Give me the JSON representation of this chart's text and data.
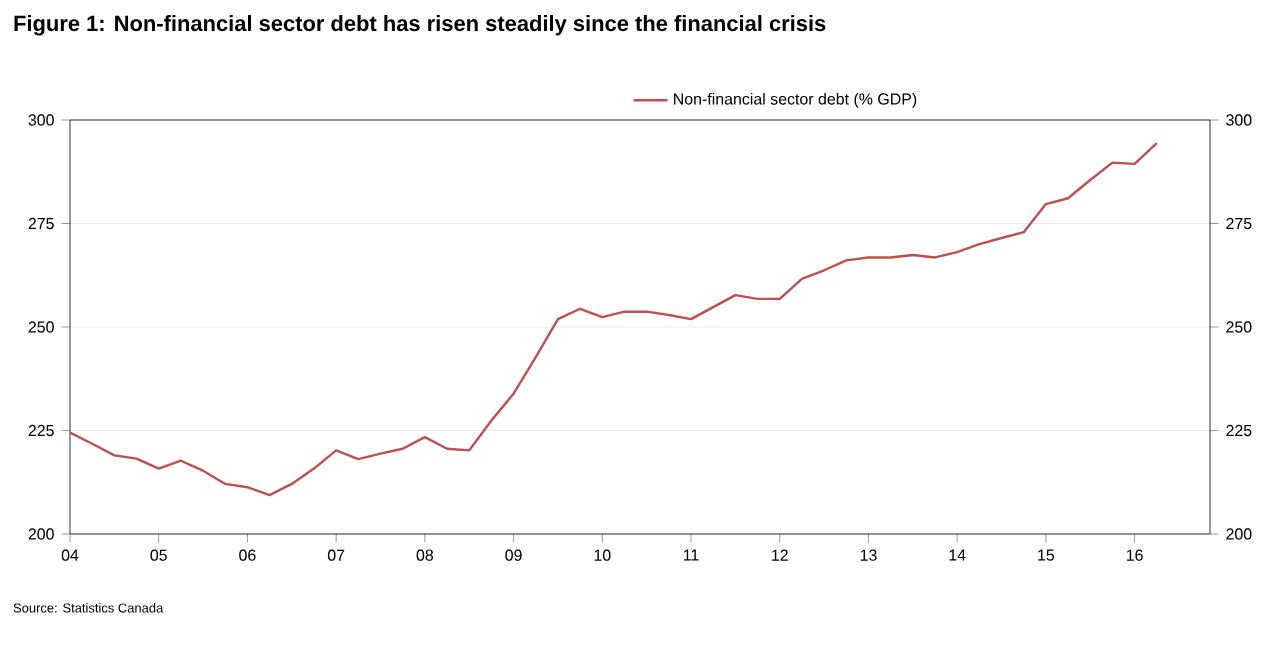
{
  "chart_data": {
    "type": "line",
    "title": "Figure 1: Non-financial sector debt has risen steadily since the financial crisis",
    "x": [
      2004,
      2004.25,
      2004.5,
      2004.75,
      2005,
      2005.25,
      2005.5,
      2005.75,
      2006,
      2006.25,
      2006.5,
      2006.75,
      2007,
      2007.25,
      2007.5,
      2007.75,
      2008,
      2008.25,
      2008.5,
      2008.75,
      2009,
      2009.25,
      2009.5,
      2009.75,
      2010,
      2010.25,
      2010.5,
      2010.75,
      2011,
      2011.25,
      2011.5,
      2011.75,
      2012,
      2012.25,
      2012.5,
      2012.75,
      2013,
      2013.25,
      2013.5,
      2013.75,
      2014,
      2014.25,
      2014.5,
      2014.75,
      2015,
      2015.25,
      2015.5,
      2015.75,
      2016,
      2016.25
    ],
    "series": [
      {
        "name": "Non-financial sector debt (% GDP)",
        "color": "#c0504d",
        "values": [
          224.5,
          221.8,
          219,
          218.2,
          215.8,
          217.7,
          215.3,
          212.1,
          211.3,
          209.4,
          212.1,
          215.8,
          220.2,
          218.1,
          219.4,
          220.6,
          223.4,
          220.6,
          220.2,
          227.4,
          233.9,
          242.7,
          251.9,
          254.4,
          252.4,
          253.7,
          253.7,
          252.9,
          251.9,
          254.8,
          257.7,
          256.8,
          256.8,
          261.6,
          263.7,
          266.1,
          266.8,
          266.8,
          267.4,
          266.8,
          268.1,
          270,
          271.5,
          272.9,
          279.7,
          281.1,
          285.5,
          289.7,
          289.4,
          294.4
        ]
      }
    ],
    "xlim": [
      2004,
      2016.85
    ],
    "xticks": [
      {
        "value": 2004,
        "label": "04"
      },
      {
        "value": 2005,
        "label": "05"
      },
      {
        "value": 2006,
        "label": "06"
      },
      {
        "value": 2007,
        "label": "07"
      },
      {
        "value": 2008,
        "label": "08"
      },
      {
        "value": 2009,
        "label": "09"
      },
      {
        "value": 2010,
        "label": "10"
      },
      {
        "value": 2011,
        "label": "11"
      },
      {
        "value": 2012,
        "label": "12"
      },
      {
        "value": 2013,
        "label": "13"
      },
      {
        "value": 2014,
        "label": "14"
      },
      {
        "value": 2015,
        "label": "15"
      },
      {
        "value": 2016,
        "label": "16"
      }
    ],
    "ylim": [
      200,
      300
    ],
    "yticks": [
      200,
      225,
      250,
      275,
      300
    ],
    "y2lim": [
      200,
      300
    ],
    "y2ticks": [
      200,
      225,
      250,
      275,
      300
    ],
    "grid": "y",
    "legend": "top",
    "marker": "none",
    "line_style": "solid",
    "annotations": [
      "Source: Statistics Canada"
    ]
  }
}
